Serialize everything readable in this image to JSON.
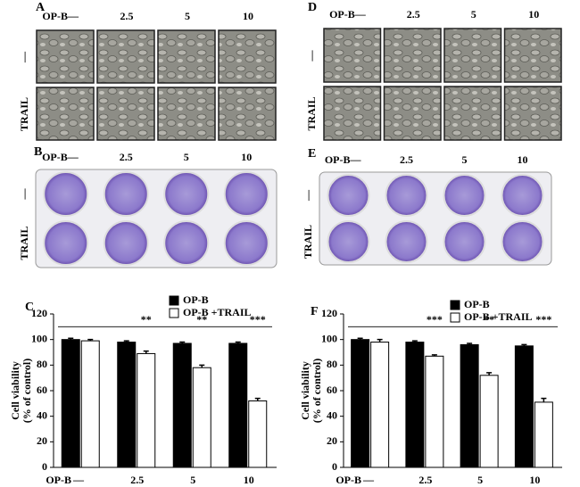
{
  "image_panels": [
    {
      "label": "A",
      "treatment": "OP-B",
      "concentrations": [
        "—",
        "2.5",
        "5",
        "10"
      ],
      "rows": [
        "—",
        "TRAIL"
      ]
    },
    {
      "label": "D",
      "treatment": "OP-B",
      "concentrations": [
        "—",
        "2.5",
        "5",
        "10"
      ],
      "rows": [
        "—",
        "TRAIL"
      ]
    },
    {
      "label": "B",
      "treatment": "OP-B",
      "concentrations": [
        "—",
        "2.5",
        "5",
        "10"
      ],
      "rows": [
        "—",
        "TRAIL"
      ]
    },
    {
      "label": "E",
      "treatment": "OP-B",
      "concentrations": [
        "—",
        "2.5",
        "5",
        "10"
      ],
      "rows": [
        "—",
        "TRAIL"
      ]
    }
  ],
  "chart_data": [
    {
      "type": "bar",
      "panel_label": "C",
      "y_label": [
        "Cell viability",
        "(% of control)"
      ],
      "x_label": "OP-B",
      "categories": [
        "—",
        "2.5",
        "5",
        "10"
      ],
      "series": [
        {
          "name": "OP-B",
          "color": "#000000",
          "values": [
            100,
            98,
            97,
            97
          ],
          "errors": [
            1,
            1,
            1,
            1
          ]
        },
        {
          "name": "OP-B +TRAIL",
          "color": "#ffffff",
          "values": [
            99,
            89,
            78,
            52
          ],
          "errors": [
            1,
            2,
            2,
            2
          ]
        }
      ],
      "significance": [
        null,
        "**",
        "**",
        "***"
      ],
      "ylim": [
        0,
        120
      ],
      "yticks": [
        0,
        20,
        40,
        60,
        80,
        100,
        120
      ]
    },
    {
      "type": "bar",
      "panel_label": "F",
      "y_label": [
        "Cell viability",
        "(% of control)"
      ],
      "x_label": "OP-B",
      "categories": [
        "—",
        "2.5",
        "5",
        "10"
      ],
      "series": [
        {
          "name": "OP-B",
          "color": "#000000",
          "values": [
            100,
            98,
            96,
            95
          ],
          "errors": [
            1,
            1,
            1,
            1
          ]
        },
        {
          "name": "OP-B +TRAIL",
          "color": "#ffffff",
          "values": [
            98,
            87,
            72,
            51
          ],
          "errors": [
            2,
            1,
            2,
            3
          ]
        }
      ],
      "significance": [
        null,
        "***",
        "**",
        "***"
      ],
      "ylim": [
        0,
        120
      ],
      "yticks": [
        0,
        20,
        40,
        60,
        80,
        100,
        120
      ]
    }
  ]
}
